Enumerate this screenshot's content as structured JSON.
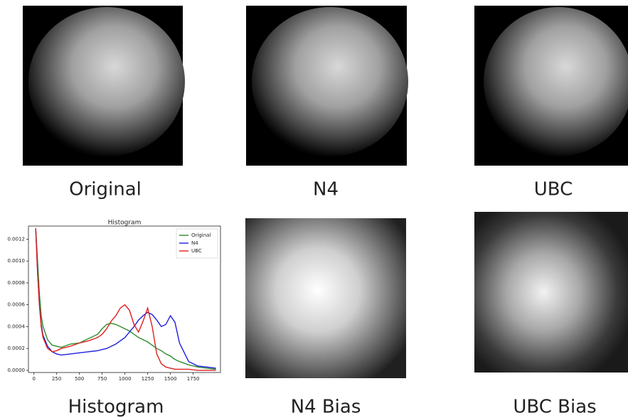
{
  "panels": [
    {
      "caption": "Original"
    },
    {
      "caption": "N4"
    },
    {
      "caption": "UBC"
    },
    {
      "caption": "Histogram"
    },
    {
      "caption": "N4 Bias"
    },
    {
      "caption": "UBC Bias"
    }
  ],
  "chart_data": {
    "type": "line",
    "title": "Histogram",
    "x": [
      20,
      40,
      60,
      80,
      100,
      150,
      200,
      250,
      300,
      400,
      500,
      600,
      700,
      750,
      800,
      850,
      900,
      950,
      1000,
      1050,
      1100,
      1150,
      1200,
      1250,
      1300,
      1350,
      1400,
      1450,
      1500,
      1550,
      1600,
      1700,
      1800,
      1900,
      2000
    ],
    "series": [
      {
        "name": "Original",
        "color": "#2e8b2e",
        "values": [
          0.0013,
          0.001,
          0.0007,
          0.0005,
          0.0004,
          0.00028,
          0.00023,
          0.00022,
          0.00021,
          0.00024,
          0.00025,
          0.00029,
          0.00033,
          0.00038,
          0.00042,
          0.00043,
          0.00042,
          0.0004,
          0.00038,
          0.00036,
          0.00033,
          0.0003,
          0.00028,
          0.00026,
          0.00023,
          0.0002,
          0.00018,
          0.00015,
          0.00013,
          0.0001,
          8e-05,
          5e-05,
          3e-05,
          2e-05,
          1e-05
        ]
      },
      {
        "name": "N4",
        "color": "#1f1fe0",
        "values": [
          0.0013,
          0.0009,
          0.0006,
          0.00042,
          0.00032,
          0.00022,
          0.00017,
          0.00015,
          0.00014,
          0.00015,
          0.00016,
          0.00017,
          0.00018,
          0.00019,
          0.0002,
          0.00022,
          0.00024,
          0.00027,
          0.0003,
          0.00035,
          0.0004,
          0.00046,
          0.0005,
          0.00053,
          0.00051,
          0.00046,
          0.0004,
          0.00042,
          0.0005,
          0.00044,
          0.00025,
          8e-05,
          4e-05,
          3e-05,
          2e-05
        ]
      },
      {
        "name": "UBC",
        "color": "#e01f1f",
        "values": [
          0.0013,
          0.0009,
          0.0006,
          0.0004,
          0.0003,
          0.0002,
          0.00017,
          0.00018,
          0.0002,
          0.00022,
          0.00025,
          0.00027,
          0.0003,
          0.00033,
          0.00038,
          0.00045,
          0.0005,
          0.00057,
          0.0006,
          0.00055,
          0.00042,
          0.00035,
          0.00045,
          0.00057,
          0.0004,
          0.00015,
          6e-05,
          3e-05,
          2e-05,
          1e-05,
          1e-05,
          1e-05,
          0,
          0,
          0
        ]
      }
    ],
    "xlim": [
      -60,
      2050
    ],
    "xticks": [
      0,
      250,
      500,
      750,
      1000,
      1250,
      1500,
      1750
    ],
    "ylim": [
      -2e-05,
      0.00132
    ],
    "yticks": [
      {
        "value": 0,
        "label": "0.0000"
      },
      {
        "value": 0.0002,
        "label": "0.0002"
      },
      {
        "value": 0.0004,
        "label": "0.0004"
      },
      {
        "value": 0.0006,
        "label": "0.0006"
      },
      {
        "value": 0.0008,
        "label": "0.0008"
      },
      {
        "value": 0.001,
        "label": "0.0010"
      },
      {
        "value": 0.0012,
        "label": "0.0012"
      }
    ],
    "legend": "upper right"
  }
}
